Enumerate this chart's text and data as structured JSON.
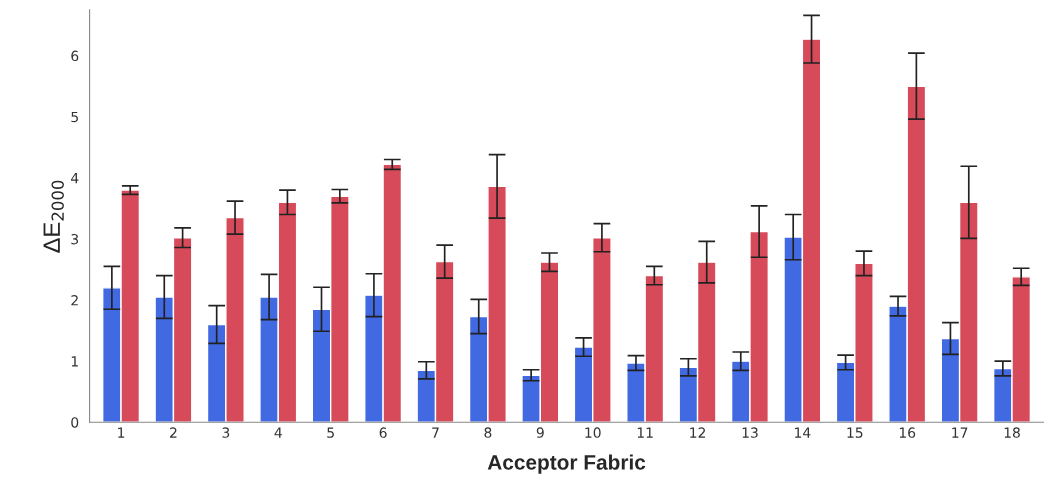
{
  "chart_data": {
    "type": "bar",
    "xlabel": "Acceptor Fabric",
    "ylabel": "ΔE$_{2000}$",
    "categories": [
      "1",
      "2",
      "3",
      "4",
      "5",
      "6",
      "7",
      "8",
      "9",
      "10",
      "11",
      "12",
      "13",
      "14",
      "15",
      "16",
      "17",
      "18"
    ],
    "series": [
      {
        "color": "#4169e1",
        "values": [
          2.2,
          2.05,
          1.6,
          2.05,
          1.85,
          2.08,
          0.85,
          1.73,
          0.77,
          1.23,
          0.97,
          0.9,
          1.0,
          3.03,
          0.98,
          1.9,
          1.37,
          0.88
        ],
        "errors": [
          0.35,
          0.35,
          0.31,
          0.37,
          0.36,
          0.35,
          0.14,
          0.28,
          0.09,
          0.15,
          0.12,
          0.14,
          0.15,
          0.37,
          0.12,
          0.16,
          0.26,
          0.12
        ]
      },
      {
        "color": "#d64a5a",
        "values": [
          3.8,
          3.02,
          3.35,
          3.6,
          3.7,
          4.22,
          2.63,
          3.86,
          2.62,
          3.02,
          2.4,
          2.62,
          3.12,
          6.27,
          2.6,
          5.5,
          3.6,
          2.38
        ],
        "errors": [
          0.07,
          0.16,
          0.27,
          0.2,
          0.11,
          0.08,
          0.27,
          0.52,
          0.15,
          0.23,
          0.15,
          0.34,
          0.42,
          0.39,
          0.2,
          0.54,
          0.59,
          0.14
        ]
      }
    ],
    "ylim": [
      0,
      6.75
    ],
    "yticks": [
      0,
      1,
      2,
      3,
      4,
      5,
      6
    ],
    "grid": false,
    "legend": false
  }
}
